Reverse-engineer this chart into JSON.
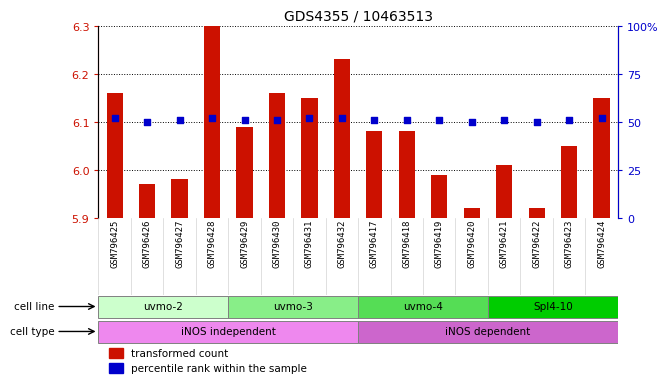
{
  "title": "GDS4355 / 10463513",
  "samples": [
    "GSM796425",
    "GSM796426",
    "GSM796427",
    "GSM796428",
    "GSM796429",
    "GSM796430",
    "GSM796431",
    "GSM796432",
    "GSM796417",
    "GSM796418",
    "GSM796419",
    "GSM796420",
    "GSM796421",
    "GSM796422",
    "GSM796423",
    "GSM796424"
  ],
  "bar_values": [
    6.16,
    5.97,
    5.98,
    6.3,
    6.09,
    6.16,
    6.15,
    6.23,
    6.08,
    6.08,
    5.99,
    5.92,
    6.01,
    5.92,
    6.05,
    6.15
  ],
  "dot_values": [
    52,
    50,
    51,
    52,
    51,
    51,
    52,
    52,
    51,
    51,
    51,
    50,
    51,
    50,
    51,
    52
  ],
  "ymin": 5.9,
  "ymax": 6.3,
  "y2min": 0,
  "y2max": 100,
  "yticks": [
    5.9,
    6.0,
    6.1,
    6.2,
    6.3
  ],
  "y2ticks": [
    0,
    25,
    50,
    75,
    100
  ],
  "bar_color": "#cc1100",
  "dot_color": "#0000cc",
  "cell_lines": [
    {
      "label": "uvmo-2",
      "start": 0,
      "end": 4,
      "color": "#ccffcc"
    },
    {
      "label": "uvmo-3",
      "start": 4,
      "end": 8,
      "color": "#88ee88"
    },
    {
      "label": "uvmo-4",
      "start": 8,
      "end": 12,
      "color": "#55dd55"
    },
    {
      "label": "Spl4-10",
      "start": 12,
      "end": 16,
      "color": "#00cc00"
    }
  ],
  "cell_types": [
    {
      "label": "iNOS independent",
      "start": 0,
      "end": 8,
      "color": "#ee88ee"
    },
    {
      "label": "iNOS dependent",
      "start": 8,
      "end": 16,
      "color": "#cc66cc"
    }
  ],
  "legend_items": [
    {
      "label": "transformed count",
      "color": "#cc1100"
    },
    {
      "label": "percentile rank within the sample",
      "color": "#0000cc"
    }
  ],
  "y2tick_labels": [
    "0",
    "25",
    "50",
    "75",
    "100%"
  ]
}
